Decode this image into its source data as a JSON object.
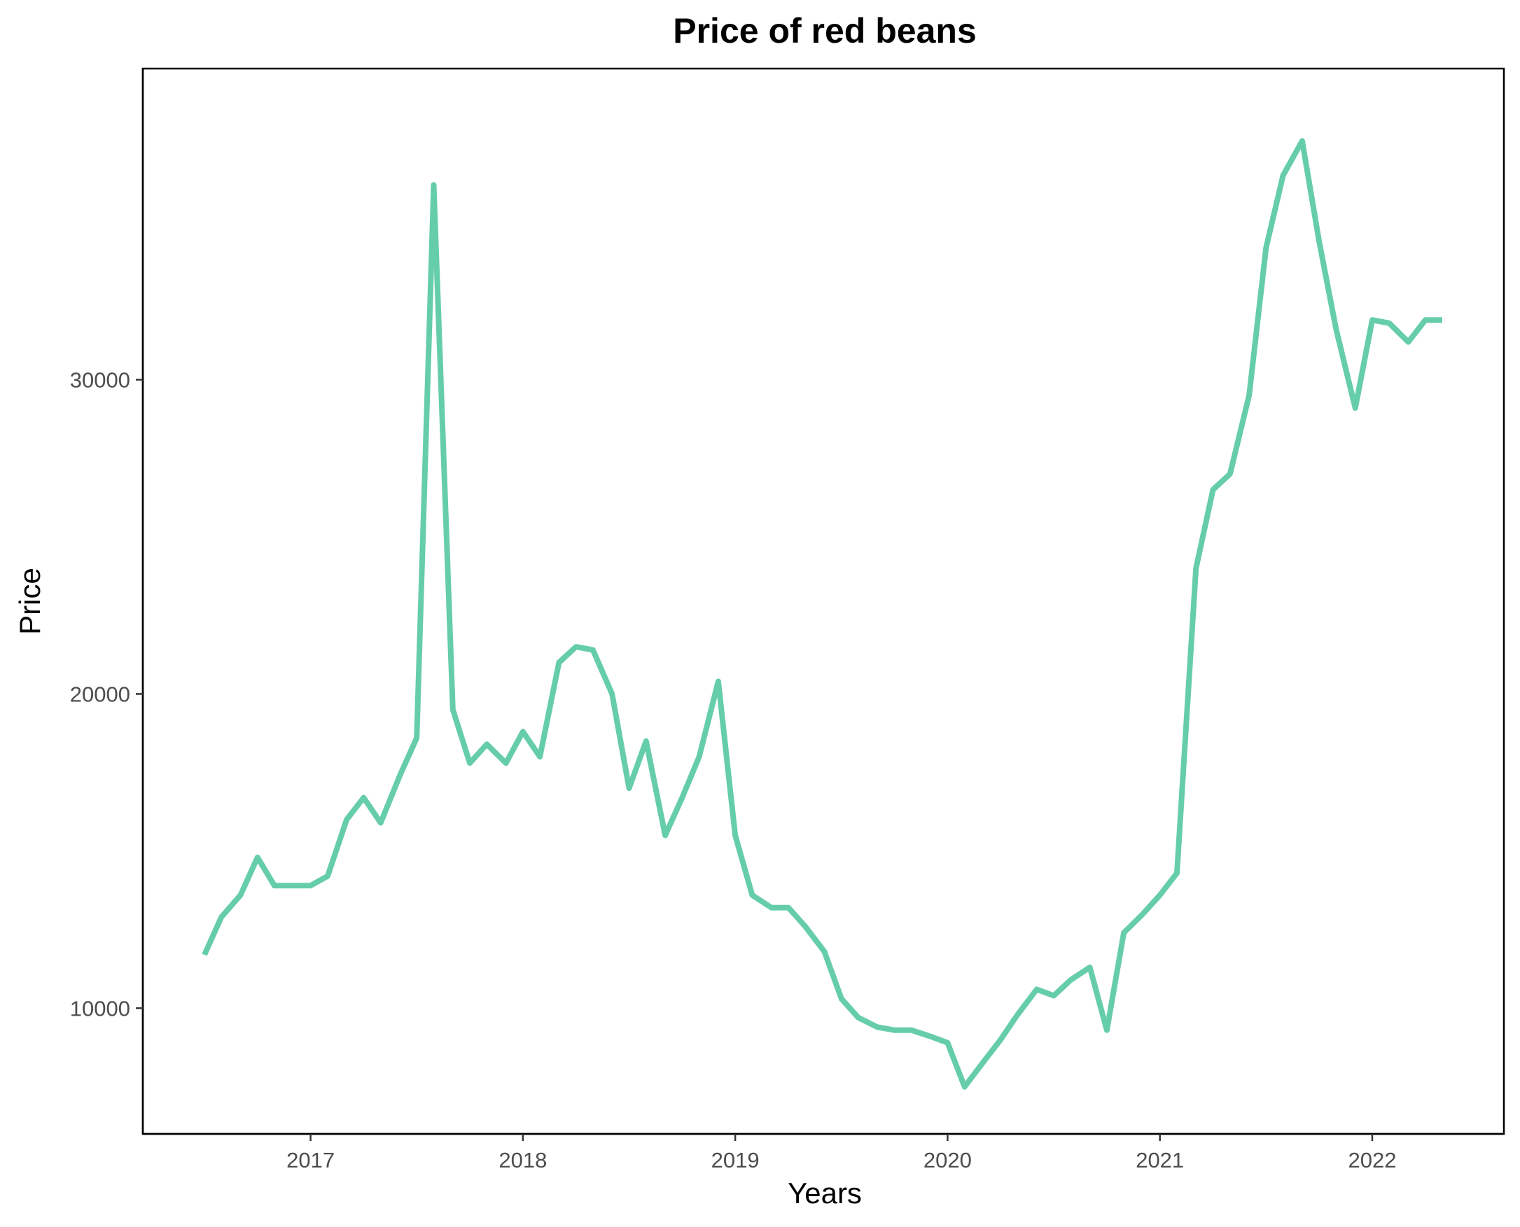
{
  "chart_data": {
    "type": "line",
    "title": "Price of red beans",
    "xlabel": "Years",
    "ylabel": "Price",
    "x_ticks": [
      2017,
      2018,
      2019,
      2020,
      2021,
      2022
    ],
    "y_ticks": [
      10000,
      20000,
      30000
    ],
    "xlim": [
      2016.21,
      2022.62
    ],
    "ylim": [
      6000,
      39900
    ],
    "grid": false,
    "line_color": "#66CDAA",
    "series": [
      {
        "x": [
          2016.5,
          2016.58,
          2016.67,
          2016.75,
          2016.83,
          2016.92,
          2017.0,
          2017.08,
          2017.17,
          2017.25,
          2017.33,
          2017.42,
          2017.5,
          2017.58,
          2017.67,
          2017.75,
          2017.83,
          2017.92,
          2018.0,
          2018.08,
          2018.17,
          2018.25,
          2018.33,
          2018.42,
          2018.5,
          2018.58,
          2018.67,
          2018.75,
          2018.83,
          2018.92,
          2019.0,
          2019.08,
          2019.17,
          2019.25,
          2019.33,
          2019.42,
          2019.5,
          2019.58,
          2019.67,
          2019.75,
          2019.83,
          2019.92,
          2020.0,
          2020.08,
          2020.17,
          2020.25,
          2020.33,
          2020.42,
          2020.5,
          2020.58,
          2020.67,
          2020.75,
          2020.83,
          2020.92,
          2021.0,
          2021.08,
          2021.17,
          2021.25,
          2021.33,
          2021.42,
          2021.5,
          2021.58,
          2021.67,
          2021.75,
          2021.83,
          2021.92,
          2022.0,
          2022.08,
          2022.17,
          2022.25,
          2022.33
        ],
        "y": [
          11700,
          12900,
          13600,
          14800,
          13900,
          13900,
          13900,
          14200,
          16000,
          16700,
          15900,
          17400,
          18600,
          36200,
          19500,
          17800,
          18400,
          17800,
          18800,
          18000,
          21000,
          21500,
          21400,
          20000,
          17000,
          18500,
          15500,
          16700,
          18000,
          20400,
          15500,
          13600,
          13200,
          13200,
          12600,
          11800,
          10300,
          9700,
          9400,
          9300,
          9300,
          9100,
          8900,
          7500,
          8300,
          9000,
          9800,
          10600,
          10400,
          10900,
          11300,
          9300,
          12400,
          13000,
          13600,
          14300,
          24000,
          26500,
          27000,
          29500,
          34200,
          36500,
          37600,
          34400,
          31600,
          29100,
          31900,
          31800,
          31200,
          31900,
          31900
        ]
      }
    ]
  }
}
